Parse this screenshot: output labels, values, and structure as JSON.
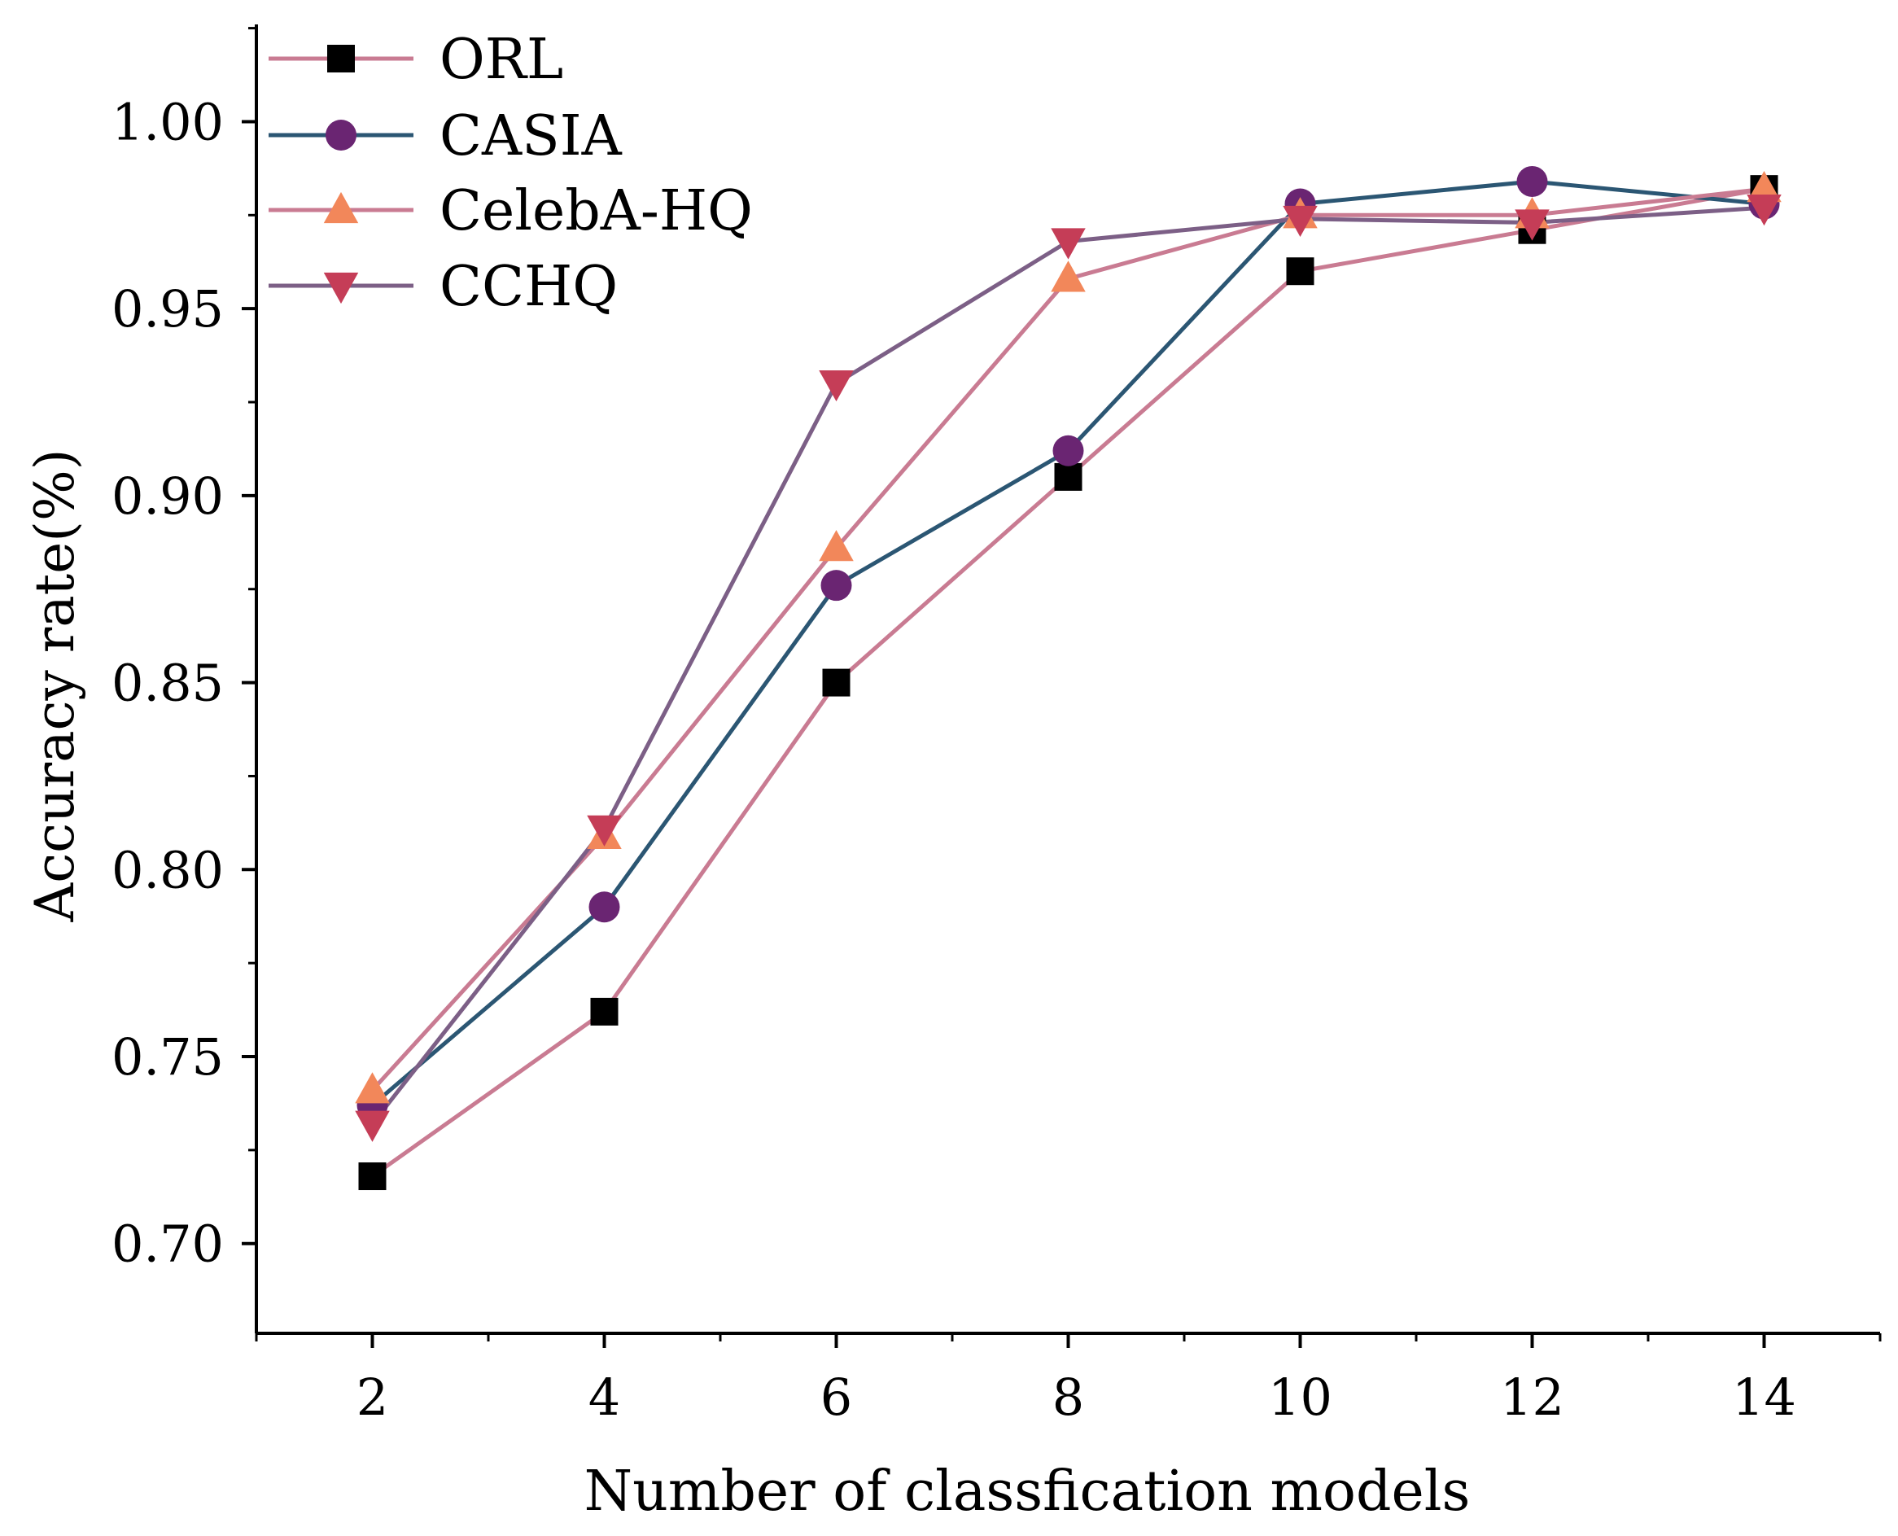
{
  "chart_data": {
    "type": "line",
    "title": "",
    "xlabel": "Number of classfication models",
    "ylabel": "Accuracy rate(%)",
    "x": [
      2,
      4,
      6,
      8,
      10,
      12,
      14
    ],
    "xlim": [
      1,
      15
    ],
    "ylim": [
      0.676,
      1.026
    ],
    "xticks": [
      2,
      4,
      6,
      8,
      10,
      12,
      14
    ],
    "xtick_labels": [
      "2",
      "4",
      "6",
      "8",
      "10",
      "12",
      "14"
    ],
    "yticks": [
      0.7,
      0.75,
      0.8,
      0.85,
      0.9,
      0.95,
      1.0
    ],
    "ytick_labels": [
      "0.70",
      "0.75",
      "0.80",
      "0.85",
      "0.90",
      "0.95",
      "1.00"
    ],
    "legend_position": "top-left",
    "series": [
      {
        "name": "ORL",
        "marker": "square",
        "line_color": "#C97B92",
        "marker_color": "#000000",
        "values": [
          0.718,
          0.762,
          0.85,
          0.905,
          0.96,
          0.971,
          0.982
        ]
      },
      {
        "name": "CASIA",
        "marker": "circle",
        "line_color": "#2B5673",
        "marker_color": "#6A2572",
        "values": [
          0.737,
          0.79,
          0.876,
          0.912,
          0.978,
          0.984,
          0.978
        ]
      },
      {
        "name": "CelebA-HQ",
        "marker": "triangle-up",
        "line_color": "#C97B92",
        "marker_color": "#F2875A",
        "values": [
          0.741,
          0.809,
          0.886,
          0.958,
          0.975,
          0.975,
          0.982
        ]
      },
      {
        "name": "CCHQ",
        "marker": "triangle-down",
        "line_color": "#7C5F86",
        "marker_color": "#C53D57",
        "values": [
          0.732,
          0.811,
          0.93,
          0.968,
          0.974,
          0.973,
          0.977
        ]
      }
    ]
  }
}
